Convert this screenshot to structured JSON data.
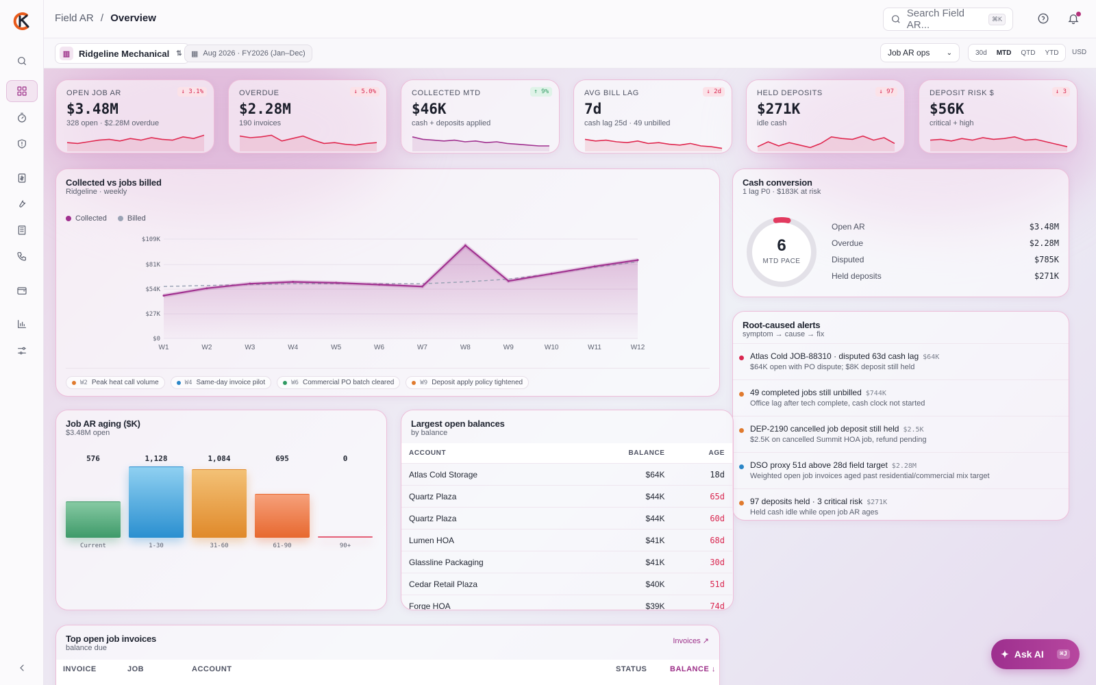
{
  "breadcrumb": {
    "root": "Field AR",
    "sep": "/",
    "current": "Overview"
  },
  "search": {
    "placeholder": "Search Field AR...",
    "shortcut": "⌘K"
  },
  "filters": {
    "org": "Ridgeline Mechanical",
    "period": "Aug 2026 · FY2026 (Jan–Dec)",
    "view": "Job AR ops",
    "ranges": [
      "30d",
      "MTD",
      "QTD",
      "YTD"
    ],
    "active_range": "MTD",
    "currency": "USD"
  },
  "kpis": [
    {
      "label": "OPEN JOB AR",
      "value": "$3.48M",
      "sub": "328 open · $2.28M overdue",
      "delta": "↓ 3.1%",
      "tone": "bad"
    },
    {
      "label": "OVERDUE",
      "value": "$2.28M",
      "sub": "190 invoices",
      "delta": "↓ 5.0%",
      "tone": "bad"
    },
    {
      "label": "COLLECTED MTD",
      "value": "$46K",
      "sub": "cash + deposits applied",
      "delta": "↑ 9%",
      "tone": "good"
    },
    {
      "label": "AVG BILL LAG",
      "value": "7d",
      "sub": "cash lag 25d · 49 unbilled",
      "delta": "↓ 2d",
      "tone": "bad"
    },
    {
      "label": "HELD DEPOSITS",
      "value": "$271K",
      "sub": "idle cash",
      "delta": "↓ 97",
      "tone": "bad"
    },
    {
      "label": "DEPOSIT RISK $",
      "value": "$56K",
      "sub": "critical + high",
      "delta": "↓ 3",
      "tone": "bad"
    }
  ],
  "collected_chart": {
    "title": "Collected vs jobs billed",
    "subtitle": "Ridgeline · weekly",
    "annotations": [
      {
        "week": "W2",
        "text": "Peak heat call volume",
        "color": "#e07a2e"
      },
      {
        "week": "W4",
        "text": "Same-day invoice pilot",
        "color": "#2a86c7"
      },
      {
        "week": "W6",
        "text": "Commercial PO batch cleared",
        "color": "#2f9a62"
      },
      {
        "week": "W9",
        "text": "Deposit apply policy tightened",
        "color": "#e07a2e"
      }
    ]
  },
  "chart_data": {
    "type": "area",
    "categories": [
      "W1",
      "W2",
      "W3",
      "W4",
      "W5",
      "W6",
      "W7",
      "W8",
      "W9",
      "W10",
      "W11",
      "W12"
    ],
    "series": [
      {
        "name": "Collected",
        "color": "#a0308f",
        "values": [
          47,
          55,
          60,
          62,
          61,
          59,
          57,
          102,
          63,
          71,
          79,
          86
        ]
      },
      {
        "name": "Billed",
        "color": "#9aa3b5",
        "values": [
          57,
          58,
          59,
          60,
          60,
          60,
          60,
          62,
          65,
          71,
          78,
          84
        ]
      }
    ],
    "ytick_labels": [
      "$0",
      "$27K",
      "$54K",
      "$81K",
      "$109K"
    ],
    "yticks": [
      0,
      27,
      54,
      81,
      109
    ],
    "ylim": [
      0,
      109
    ],
    "legend": "top-left"
  },
  "cash_conversion": {
    "title": "Cash conversion",
    "subtitle": "1 lag P0 · $183K at risk",
    "gauge_value": "6",
    "gauge_label": "MTD PACE",
    "gauge_fraction": 0.06,
    "rows": [
      {
        "k": "Open AR",
        "v": "$3.48M"
      },
      {
        "k": "Overdue",
        "v": "$2.28M"
      },
      {
        "k": "Disputed",
        "v": "$785K"
      },
      {
        "k": "Held deposits",
        "v": "$271K"
      }
    ]
  },
  "alerts": {
    "title": "Root-caused alerts",
    "subtitle": "symptom → cause → fix",
    "items": [
      {
        "title": "Atlas Cold JOB-88310 · disputed 63d cash lag",
        "amount": "$64K",
        "detail": "$64K open with PO dispute; $8K deposit still held",
        "color": "#d9264f"
      },
      {
        "title": "49 completed jobs still unbilled",
        "amount": "$744K",
        "detail": "Office lag after tech complete, cash clock not started",
        "color": "#e07a2e"
      },
      {
        "title": "DEP-2190 cancelled job deposit still held",
        "amount": "$2.5K",
        "detail": "$2.5K on cancelled Summit HOA job, refund pending",
        "color": "#e07a2e"
      },
      {
        "title": "DSO proxy 51d above 28d field target",
        "amount": "$2.28M",
        "detail": "Weighted open job invoices aged past residential/commercial mix target",
        "color": "#2a86c7"
      },
      {
        "title": "97 deposits held · 3 critical risk",
        "amount": "$271K",
        "detail": "Held cash idle while open job AR ages",
        "color": "#e07a2e"
      }
    ]
  },
  "aging": {
    "title": "Job AR aging ($K)",
    "subtitle": "$3.48M open",
    "buckets": [
      {
        "label": "Current",
        "value": 576,
        "display": "576"
      },
      {
        "label": "1-30",
        "value": 1128,
        "display": "1,128"
      },
      {
        "label": "31-60",
        "value": 1084,
        "display": "1,084"
      },
      {
        "label": "61-90",
        "value": 695,
        "display": "695"
      },
      {
        "label": "90+",
        "value": 0,
        "display": "0"
      }
    ]
  },
  "balances": {
    "title": "Largest open balances",
    "subtitle": "by balance",
    "headers": {
      "account": "ACCOUNT",
      "balance": "BALANCE",
      "age": "AGE"
    },
    "rows": [
      {
        "account": "Atlas Cold Storage",
        "balance": "$64K",
        "age": "18d",
        "late": false
      },
      {
        "account": "Quartz Plaza",
        "balance": "$44K",
        "age": "65d",
        "late": true
      },
      {
        "account": "Quartz Plaza",
        "balance": "$44K",
        "age": "60d",
        "late": true
      },
      {
        "account": "Lumen HOA",
        "balance": "$41K",
        "age": "68d",
        "late": true
      },
      {
        "account": "Glassline Packaging",
        "balance": "$41K",
        "age": "30d",
        "late": true
      },
      {
        "account": "Cedar Retail Plaza",
        "balance": "$40K",
        "age": "51d",
        "late": true
      },
      {
        "account": "Forge HOA",
        "balance": "$39K",
        "age": "74d",
        "late": true
      }
    ]
  },
  "invoices": {
    "title": "Top open job invoices",
    "subtitle": "balance due",
    "link": "Invoices ↗",
    "headers": {
      "invoice": "INVOICE",
      "job": "JOB",
      "account": "ACCOUNT",
      "status": "STATUS",
      "balance": "BALANCE ↓"
    }
  },
  "ask_ai": {
    "label": "Ask AI",
    "shortcut": "⌘J"
  },
  "colors": {
    "accent": "#9c2f88",
    "bad": "#d9264f",
    "good": "#2f9a62"
  }
}
